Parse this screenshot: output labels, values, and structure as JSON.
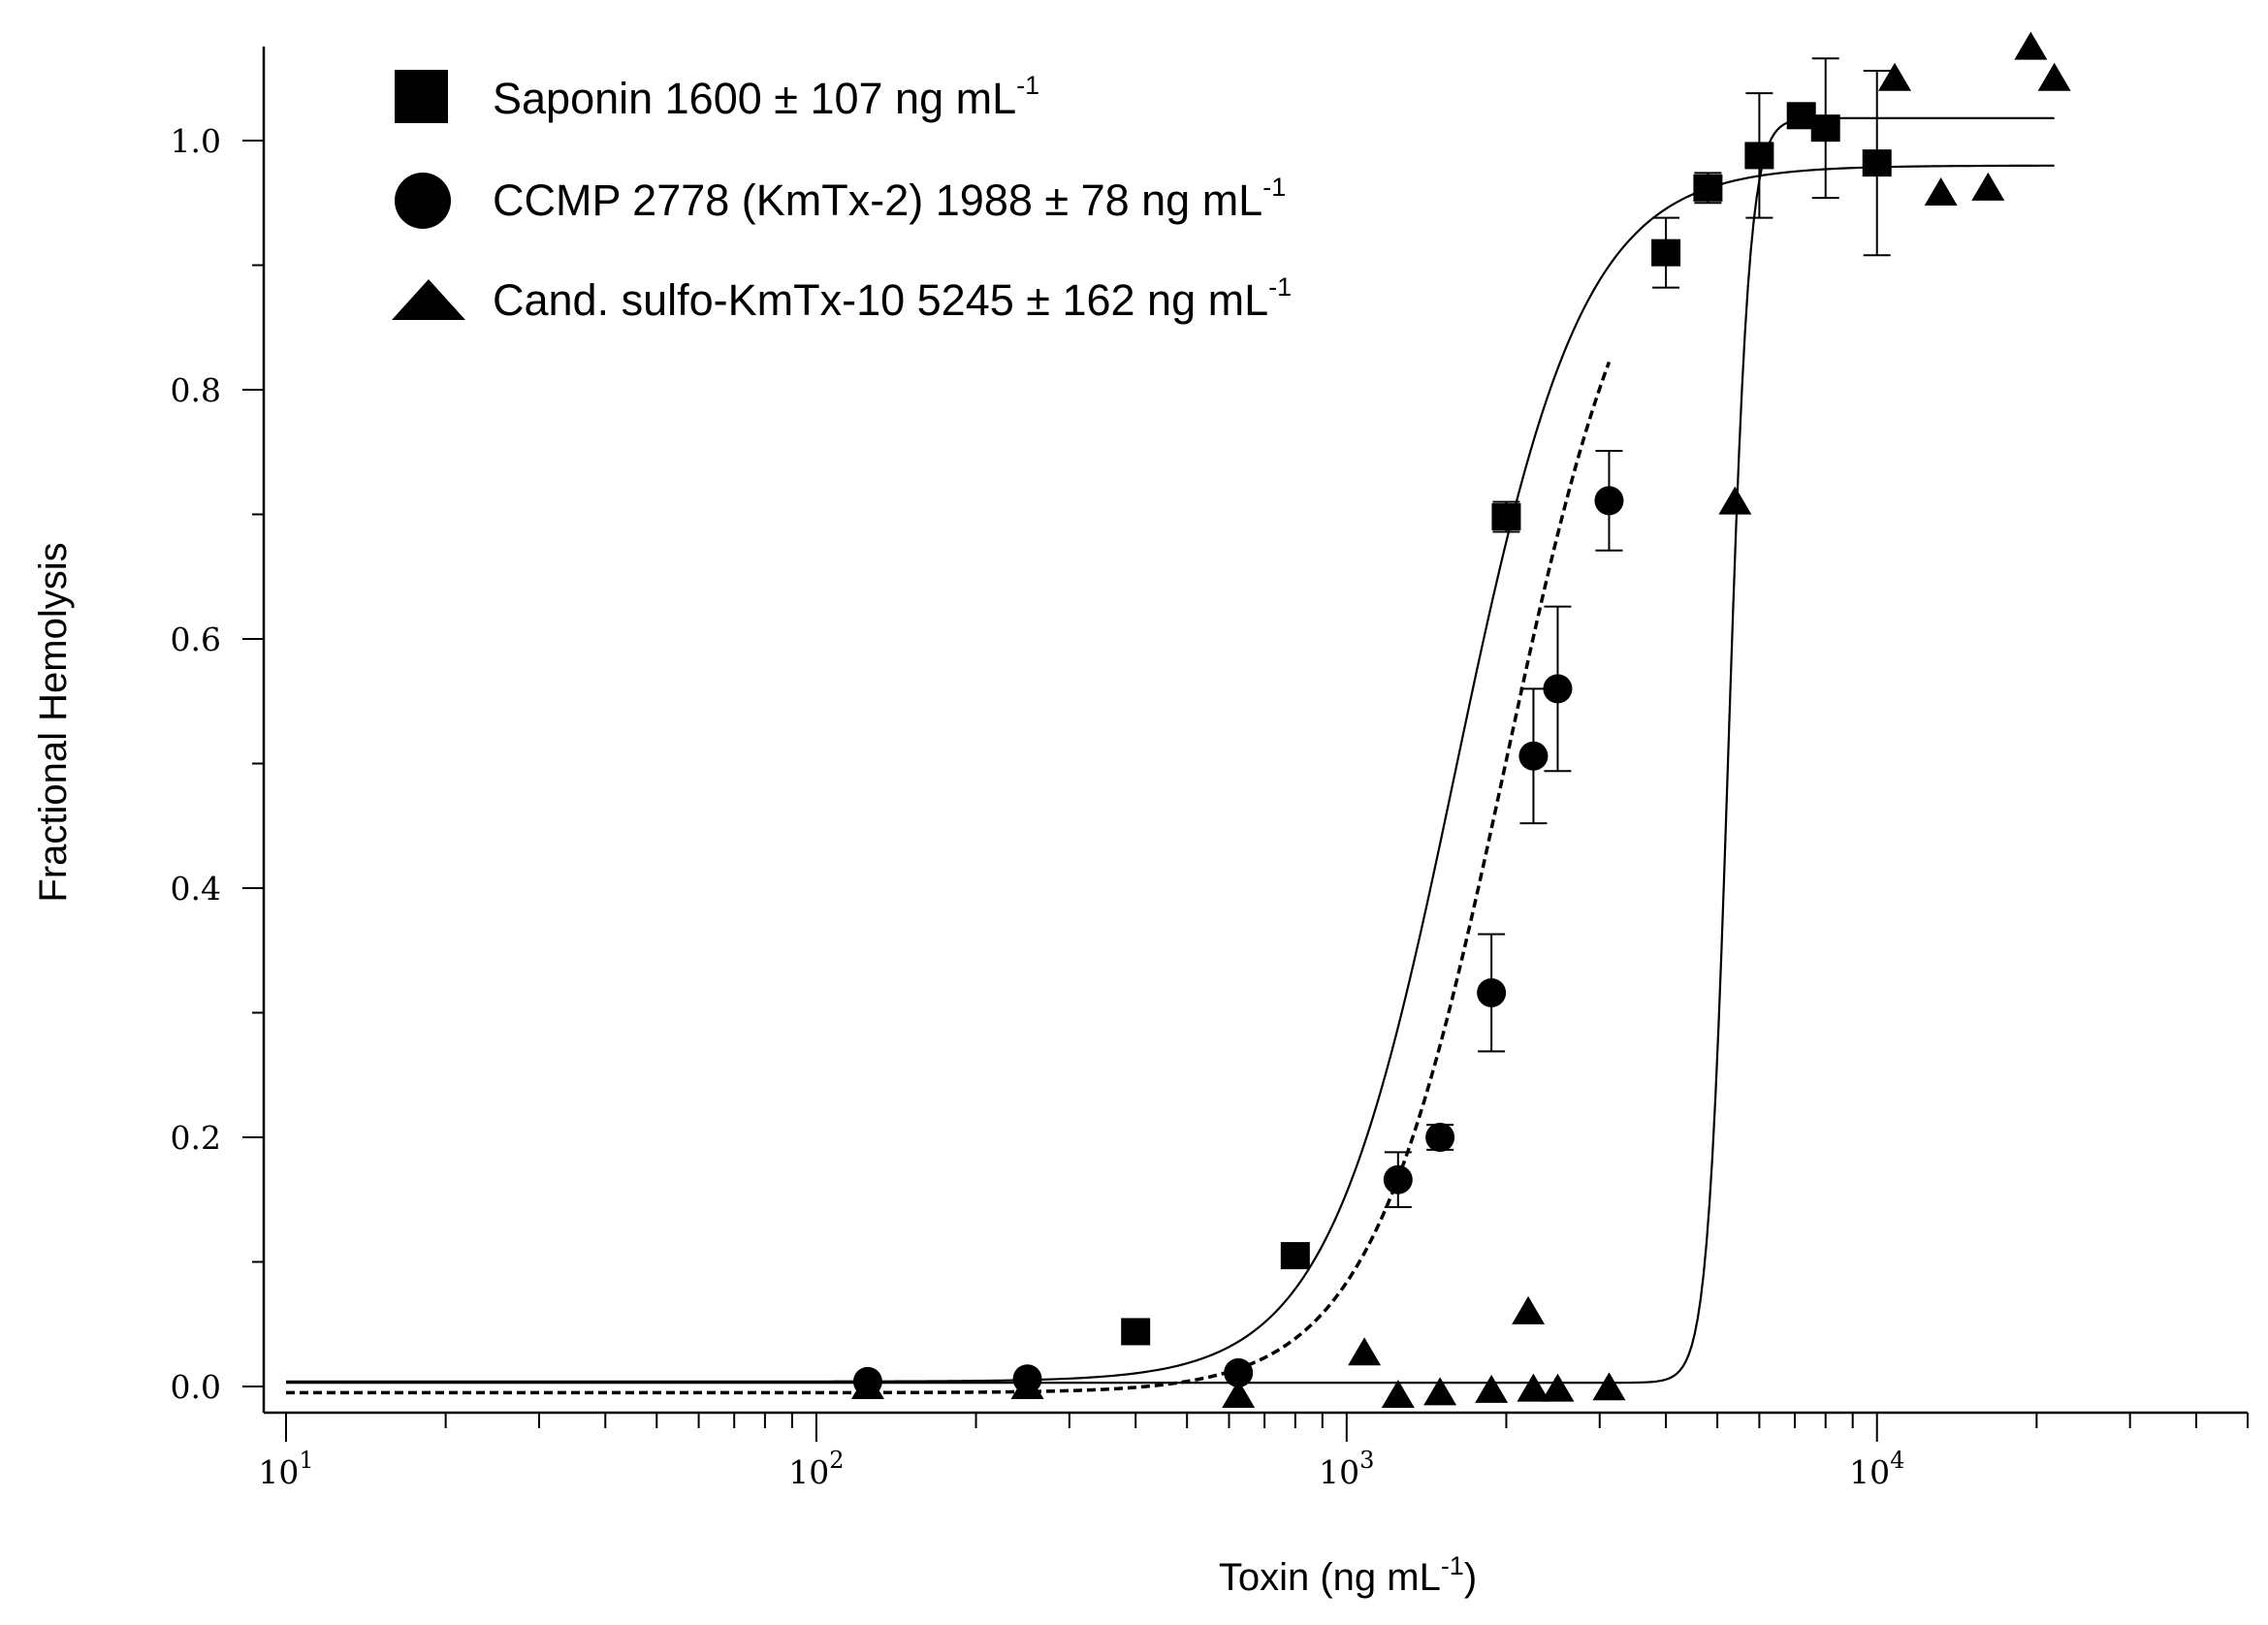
{
  "chart_data": {
    "type": "scatter",
    "xlabel": "Toxin (ng mL",
    "xlabel_unit_exponent": "-1",
    "xlabel_suffix": ")",
    "ylabel": "Fractional Hemolysis",
    "xscale": "log",
    "xlim": [
      10,
      50000
    ],
    "ylim": [
      -0.05,
      1.07
    ],
    "x_ticks": [
      {
        "value": 10,
        "base": "10",
        "exp": "1"
      },
      {
        "value": 100,
        "base": "10",
        "exp": "2"
      },
      {
        "value": 1000,
        "base": "10",
        "exp": "3"
      },
      {
        "value": 10000,
        "base": "10",
        "exp": "4"
      }
    ],
    "y_ticks": [
      {
        "value": 0.0,
        "label": "0.0"
      },
      {
        "value": 0.2,
        "label": "0.2"
      },
      {
        "value": 0.4,
        "label": "0.4"
      },
      {
        "value": 0.6,
        "label": "0.6"
      },
      {
        "value": 0.8,
        "label": "0.8"
      },
      {
        "value": 1.0,
        "label": "1.0"
      }
    ],
    "legend_position": "top-left",
    "series": [
      {
        "name": "Saponin",
        "legend_label": "Saponin 1600 ± 107 ng mL",
        "legend_exp": "-1",
        "marker": "square",
        "color": "#000000",
        "points": [
          {
            "x": 400,
            "y": 0.044
          },
          {
            "x": 800,
            "y": 0.105
          },
          {
            "x": 2000,
            "y": 0.698,
            "err": 0.012
          },
          {
            "x": 4000,
            "y": 0.91,
            "err": 0.028
          },
          {
            "x": 4800,
            "y": 0.962,
            "err": 0.012
          },
          {
            "x": 6000,
            "y": 0.988,
            "err": 0.05
          },
          {
            "x": 7200,
            "y": 1.02
          },
          {
            "x": 8000,
            "y": 1.01,
            "err": 0.056
          },
          {
            "x": 10000,
            "y": 0.982,
            "err": 0.074
          }
        ],
        "fit": {
          "bottom": 0.004,
          "top": 0.98,
          "ec50": 1600,
          "hill": 3.6,
          "line": "solid"
        }
      },
      {
        "name": "CCMP 2778 (KmTx-2)",
        "legend_label": "CCMP 2778 (KmTx-2) 1988 ± 78 ng mL",
        "legend_exp": "-1",
        "marker": "circle",
        "color": "#000000",
        "points": [
          {
            "x": 125,
            "y": 0.004
          },
          {
            "x": 250,
            "y": 0.006
          },
          {
            "x": 625,
            "y": 0.011
          },
          {
            "x": 1250,
            "y": 0.166,
            "err": 0.022
          },
          {
            "x": 1500,
            "y": 0.2,
            "err": 0.01
          },
          {
            "x": 1875,
            "y": 0.316,
            "err": 0.047
          },
          {
            "x": 2250,
            "y": 0.506,
            "err": 0.054
          },
          {
            "x": 2500,
            "y": 0.56,
            "err": 0.066
          },
          {
            "x": 3125,
            "y": 0.711,
            "err": 0.04
          }
        ],
        "fit": {
          "bottom": -0.005,
          "top": 1.0,
          "ec50": 1988,
          "hill": 3.4,
          "line": "dashed",
          "xmax": 3125
        }
      },
      {
        "name": "Cand. sulfo-KmTx-10",
        "legend_label": "Cand. sulfo-KmTx-10 5245 ± 162 ng mL",
        "legend_exp": "-1",
        "marker": "triangle",
        "color": "#000000",
        "points": [
          {
            "x": 125,
            "y": 0.0
          },
          {
            "x": 250,
            "y": 0.0
          },
          {
            "x": 625,
            "y": -0.007
          },
          {
            "x": 1080,
            "y": 0.027
          },
          {
            "x": 1250,
            "y": -0.007
          },
          {
            "x": 1500,
            "y": -0.005
          },
          {
            "x": 1875,
            "y": -0.003
          },
          {
            "x": 2200,
            "y": 0.06
          },
          {
            "x": 2250,
            "y": -0.002
          },
          {
            "x": 2500,
            "y": -0.002
          },
          {
            "x": 3125,
            "y": -0.001
          },
          {
            "x": 5400,
            "y": 0.71
          },
          {
            "x": 10800,
            "y": 1.05
          },
          {
            "x": 13200,
            "y": 0.958
          },
          {
            "x": 16200,
            "y": 0.962
          },
          {
            "x": 19500,
            "y": 1.075
          },
          {
            "x": 21600,
            "y": 1.05
          }
        ],
        "fit": {
          "bottom": 0.003,
          "top": 1.018,
          "ec50": 5245,
          "hill": 22,
          "line": "solid"
        }
      }
    ]
  }
}
